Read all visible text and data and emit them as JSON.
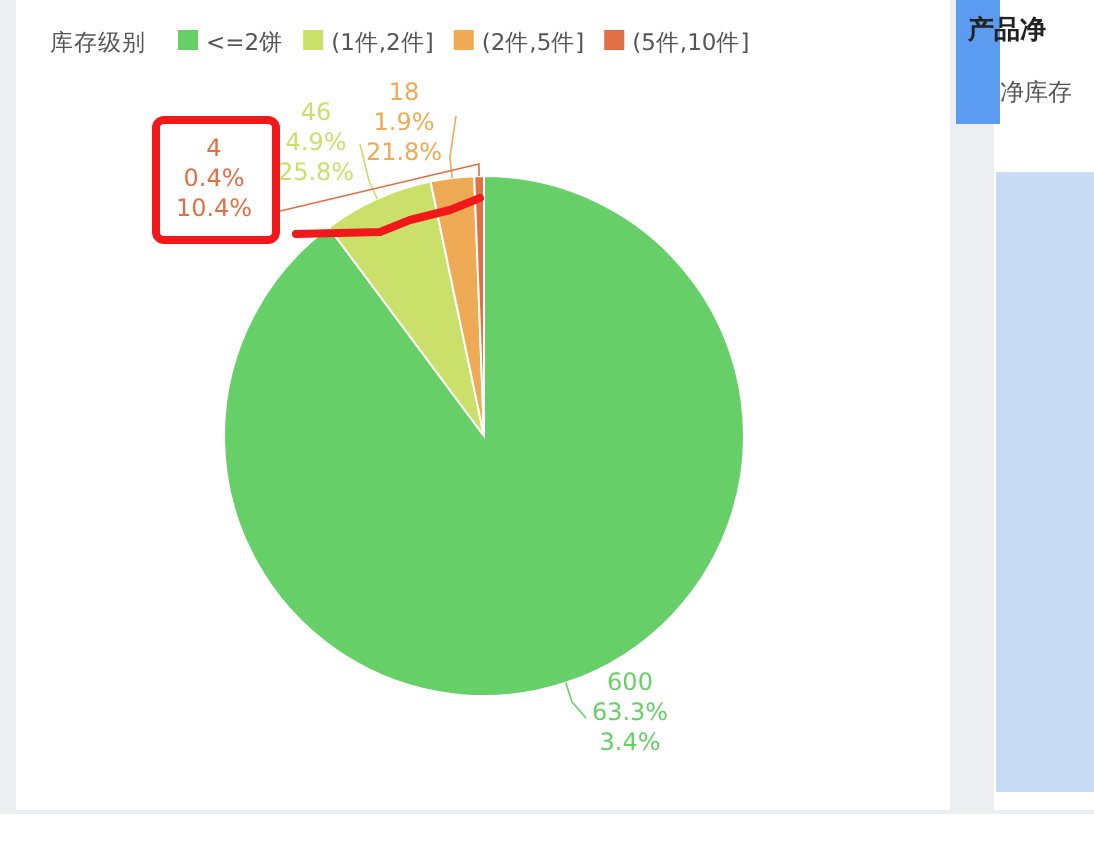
{
  "chart_data": {
    "type": "pie",
    "legend_title": "库存级别",
    "legend": "top",
    "categories": [
      "<=2饼",
      "(1件,2件]",
      "(2件,5件]",
      "(5件,10件]"
    ],
    "values": [
      600,
      46,
      18,
      4
    ],
    "colors": [
      "#67cf68",
      "#cbdf6b",
      "#eeaa55",
      "#e07045"
    ],
    "value_labels": [
      "600\n63.3%\n3.4%",
      "46\n4.9%\n25.8%",
      "18\n1.9%\n21.8%",
      "4\n0.4%\n10.4%"
    ],
    "annotations": [
      "产品净",
      "净库存"
    ]
  }
}
